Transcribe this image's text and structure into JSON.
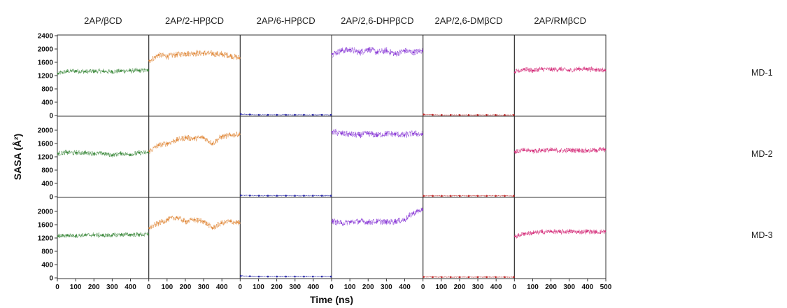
{
  "chart_data": {
    "type": "scatter",
    "xlabel": "Time (ns)",
    "ylabel": "SASA (Å²)",
    "xlim": [
      0,
      500
    ],
    "ylim": [
      0,
      2400
    ],
    "x_ticks": [
      "0",
      "100",
      "200",
      "300",
      "400",
      "500"
    ],
    "y_ticks_top": [
      "0",
      "400",
      "800",
      "1200",
      "1600",
      "2000",
      "2400"
    ],
    "y_ticks_other": [
      "0",
      "400",
      "800",
      "1200",
      "1600",
      "2000"
    ],
    "columns": [
      {
        "name": "2AP/βCD",
        "color": "#3d8a3d"
      },
      {
        "name": "2AP/2-HPβCD",
        "color": "#e0883a"
      },
      {
        "name": "2AP/6-HPβCD",
        "color": "#2b2ba8"
      },
      {
        "name": "2AP/2,6-DHPβCD",
        "color": "#8a3ad6"
      },
      {
        "name": "2AP/2,6-DMβCD",
        "color": "#c02a2a"
      },
      {
        "name": "2AP/RMβCD",
        "color": "#d42a78"
      }
    ],
    "rows": [
      "MD-1",
      "MD-2",
      "MD-3"
    ],
    "series": [
      {
        "column": "2AP/βCD",
        "row": "MD-1",
        "x": [
          0,
          50,
          100,
          150,
          200,
          250,
          300,
          350,
          400,
          450,
          500
        ],
        "y": [
          1260,
          1330,
          1340,
          1320,
          1330,
          1330,
          1320,
          1340,
          1350,
          1350,
          1360
        ]
      },
      {
        "column": "2AP/2-HPβCD",
        "row": "MD-1",
        "x": [
          0,
          50,
          100,
          150,
          200,
          250,
          300,
          350,
          400,
          450,
          500
        ],
        "y": [
          1650,
          1820,
          1780,
          1830,
          1860,
          1870,
          1870,
          1860,
          1840,
          1800,
          1730
        ]
      },
      {
        "column": "2AP/6-HPβCD",
        "row": "MD-1",
        "x": [
          0,
          50,
          100,
          150,
          200,
          250,
          300,
          350,
          400,
          450,
          500
        ],
        "y": [
          40,
          30,
          20,
          20,
          20,
          20,
          20,
          20,
          20,
          20,
          20
        ]
      },
      {
        "column": "2AP/2,6-DHPβCD",
        "row": "MD-1",
        "x": [
          0,
          50,
          100,
          150,
          200,
          250,
          300,
          350,
          400,
          450,
          500
        ],
        "y": [
          1850,
          1950,
          1980,
          1900,
          2000,
          1900,
          1950,
          1850,
          1950,
          1900,
          1950
        ]
      },
      {
        "column": "2AP/2,6-DMβCD",
        "row": "MD-1",
        "x": [
          0,
          50,
          100,
          150,
          200,
          250,
          300,
          350,
          400,
          450,
          500
        ],
        "y": [
          30,
          20,
          15,
          15,
          15,
          15,
          15,
          15,
          15,
          15,
          15
        ]
      },
      {
        "column": "2AP/RMβCD",
        "row": "MD-1",
        "x": [
          0,
          50,
          100,
          150,
          200,
          250,
          300,
          350,
          400,
          450,
          500
        ],
        "y": [
          1300,
          1400,
          1350,
          1400,
          1380,
          1400,
          1350,
          1400,
          1400,
          1380,
          1360
        ]
      },
      {
        "column": "2AP/βCD",
        "row": "MD-2",
        "x": [
          0,
          50,
          100,
          150,
          200,
          250,
          300,
          350,
          400,
          450,
          500
        ],
        "y": [
          1300,
          1330,
          1320,
          1320,
          1300,
          1300,
          1250,
          1300,
          1270,
          1320,
          1330
        ]
      },
      {
        "column": "2AP/2-HPβCD",
        "row": "MD-2",
        "x": [
          0,
          50,
          100,
          150,
          200,
          250,
          300,
          350,
          400,
          450,
          500
        ],
        "y": [
          1370,
          1550,
          1600,
          1700,
          1780,
          1750,
          1780,
          1600,
          1800,
          1850,
          1880
        ]
      },
      {
        "column": "2AP/6-HPβCD",
        "row": "MD-2",
        "x": [
          0,
          50,
          100,
          150,
          200,
          250,
          300,
          350,
          400,
          450,
          500
        ],
        "y": [
          40,
          35,
          30,
          30,
          30,
          30,
          30,
          30,
          30,
          30,
          30
        ]
      },
      {
        "column": "2AP/2,6-DHPβCD",
        "row": "MD-2",
        "x": [
          0,
          50,
          100,
          150,
          200,
          250,
          300,
          350,
          400,
          450,
          500
        ],
        "y": [
          1950,
          1900,
          1880,
          1850,
          1900,
          1850,
          1900,
          1880,
          1850,
          1900,
          1880
        ]
      },
      {
        "column": "2AP/2,6-DMβCD",
        "row": "MD-2",
        "x": [
          0,
          50,
          100,
          150,
          200,
          250,
          300,
          350,
          400,
          450,
          500
        ],
        "y": [
          25,
          25,
          25,
          25,
          25,
          25,
          25,
          25,
          25,
          25,
          25
        ]
      },
      {
        "column": "2AP/RMβCD",
        "row": "MD-2",
        "x": [
          0,
          50,
          100,
          150,
          200,
          250,
          300,
          350,
          400,
          450,
          500
        ],
        "y": [
          1350,
          1400,
          1380,
          1400,
          1400,
          1380,
          1400,
          1400,
          1380,
          1400,
          1420
        ]
      },
      {
        "column": "2AP/βCD",
        "row": "MD-3",
        "x": [
          0,
          50,
          100,
          150,
          200,
          250,
          300,
          350,
          400,
          450,
          500
        ],
        "y": [
          1250,
          1280,
          1270,
          1290,
          1290,
          1280,
          1280,
          1300,
          1300,
          1300,
          1310
        ]
      },
      {
        "column": "2AP/2-HPβCD",
        "row": "MD-3",
        "x": [
          0,
          50,
          100,
          150,
          200,
          250,
          300,
          350,
          400,
          450,
          500
        ],
        "y": [
          1500,
          1650,
          1750,
          1820,
          1700,
          1750,
          1700,
          1500,
          1650,
          1700,
          1650
        ]
      },
      {
        "column": "2AP/6-HPβCD",
        "row": "MD-3",
        "x": [
          0,
          50,
          100,
          150,
          200,
          250,
          300,
          350,
          400,
          450,
          500
        ],
        "y": [
          60,
          50,
          40,
          40,
          40,
          40,
          40,
          40,
          40,
          40,
          40
        ]
      },
      {
        "column": "2AP/2,6-DHPβCD",
        "row": "MD-3",
        "x": [
          0,
          50,
          100,
          150,
          200,
          250,
          300,
          350,
          400,
          450,
          500
        ],
        "y": [
          1700,
          1650,
          1680,
          1700,
          1680,
          1700,
          1680,
          1700,
          1750,
          1950,
          2050
        ]
      },
      {
        "column": "2AP/2,6-DMβCD",
        "row": "MD-3",
        "x": [
          0,
          50,
          100,
          150,
          200,
          250,
          300,
          350,
          400,
          450,
          500
        ],
        "y": [
          30,
          25,
          25,
          25,
          25,
          25,
          25,
          25,
          25,
          25,
          25
        ]
      },
      {
        "column": "2AP/RMβCD",
        "row": "MD-3",
        "x": [
          0,
          50,
          100,
          150,
          200,
          250,
          300,
          350,
          400,
          450,
          500
        ],
        "y": [
          1250,
          1330,
          1350,
          1380,
          1400,
          1380,
          1400,
          1380,
          1400,
          1380,
          1400
        ]
      }
    ]
  }
}
